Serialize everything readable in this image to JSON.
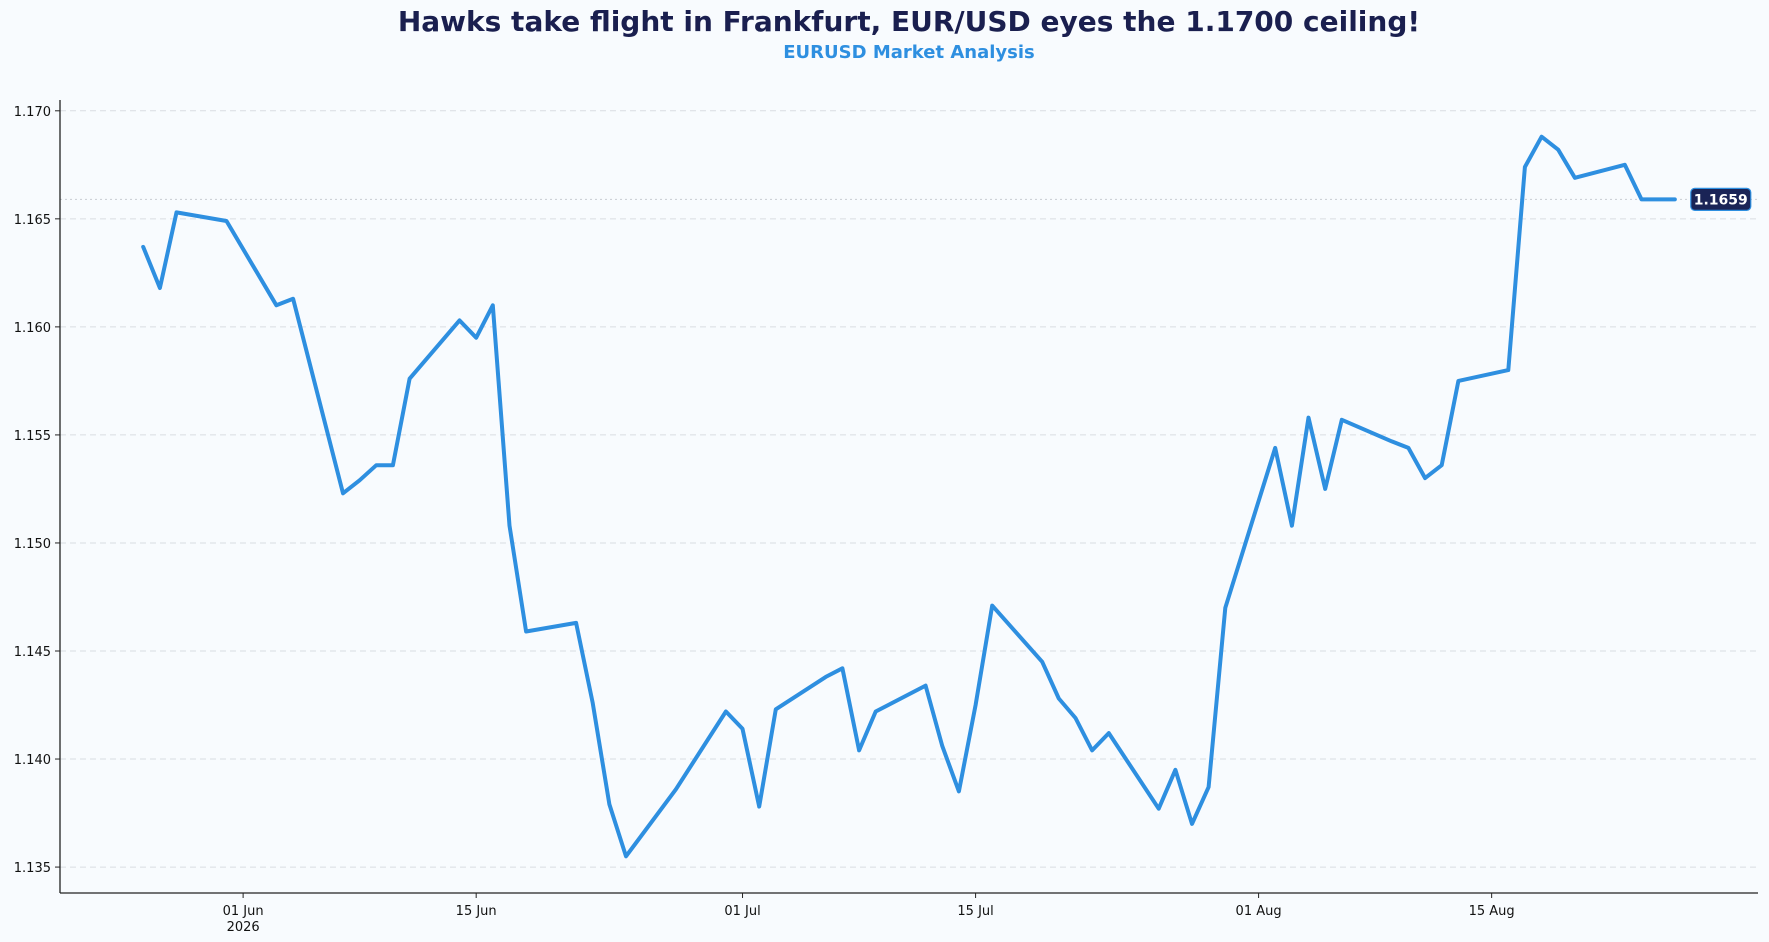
{
  "chart_data": {
    "type": "line",
    "title": "Hawks take flight in Frankfurt, EUR/USD eyes the 1.1700 ceiling!",
    "subtitle": "EURUSD Market Analysis",
    "xlabel": "",
    "ylabel": "",
    "ylim": [
      1.1338,
      1.1705
    ],
    "y_ticks": [
      "1.135",
      "1.140",
      "1.145",
      "1.150",
      "1.155",
      "1.160",
      "1.165",
      "1.170"
    ],
    "x_ticks": [
      {
        "date": "2026-06-01",
        "label": "01 Jun",
        "sublabel": "2026"
      },
      {
        "date": "2026-06-15",
        "label": "15 Jun",
        "sublabel": ""
      },
      {
        "date": "2026-07-01",
        "label": "01 Jul",
        "sublabel": ""
      },
      {
        "date": "2026-07-15",
        "label": "15 Jul",
        "sublabel": ""
      },
      {
        "date": "2026-08-01",
        "label": "01 Aug",
        "sublabel": ""
      },
      {
        "date": "2026-08-15",
        "label": "15 Aug",
        "sublabel": ""
      }
    ],
    "x_range": [
      "2026-05-21",
      "2026-08-31"
    ],
    "grid": "horizontal dashed",
    "last_value": 1.1659,
    "last_value_label": "1.1659",
    "series": [
      {
        "color": "#2e8fe0",
        "x": [
          "2026-05-26",
          "2026-05-27",
          "2026-05-28",
          "2026-05-31",
          "2026-06-03",
          "2026-06-04",
          "2026-06-07",
          "2026-06-08",
          "2026-06-09",
          "2026-06-10",
          "2026-06-11",
          "2026-06-14",
          "2026-06-15",
          "2026-06-16",
          "2026-06-17",
          "2026-06-18",
          "2026-06-21",
          "2026-06-22",
          "2026-06-23",
          "2026-06-24",
          "2026-06-27",
          "2026-06-30",
          "2026-07-01",
          "2026-07-02",
          "2026-07-03",
          "2026-07-06",
          "2026-07-07",
          "2026-07-08",
          "2026-07-09",
          "2026-07-12",
          "2026-07-13",
          "2026-07-14",
          "2026-07-15",
          "2026-07-16",
          "2026-07-19",
          "2026-07-20",
          "2026-07-21",
          "2026-07-22",
          "2026-07-23",
          "2026-07-26",
          "2026-07-27",
          "2026-07-28",
          "2026-07-29",
          "2026-07-30",
          "2026-08-02",
          "2026-08-03",
          "2026-08-04",
          "2026-08-05",
          "2026-08-06",
          "2026-08-09",
          "2026-08-10",
          "2026-08-11",
          "2026-08-12",
          "2026-08-13",
          "2026-08-16",
          "2026-08-17",
          "2026-08-18",
          "2026-08-19",
          "2026-08-20",
          "2026-08-23",
          "2026-08-24",
          "2026-08-25",
          "2026-08-26"
        ],
        "y": [
          1.1637,
          1.1618,
          1.1653,
          1.1649,
          1.161,
          1.1613,
          1.1523,
          1.1529,
          1.1536,
          1.1536,
          1.1576,
          1.1603,
          1.1595,
          1.161,
          1.1508,
          1.1459,
          1.1463,
          1.1426,
          1.1379,
          1.1355,
          1.1386,
          1.1422,
          1.1414,
          1.1378,
          1.1423,
          1.1438,
          1.1442,
          1.1404,
          1.1422,
          1.1434,
          1.1406,
          1.1385,
          1.1425,
          1.1471,
          1.1445,
          1.1428,
          1.1419,
          1.1404,
          1.1412,
          1.1377,
          1.1395,
          1.137,
          1.1387,
          1.147,
          1.1544,
          1.1508,
          1.1558,
          1.1525,
          1.1557,
          1.1547,
          1.1544,
          1.153,
          1.1536,
          1.1575,
          1.158,
          1.1674,
          1.1688,
          1.1682,
          1.1669,
          1.1675,
          1.1659,
          1.1659,
          1.1659
        ]
      }
    ]
  }
}
